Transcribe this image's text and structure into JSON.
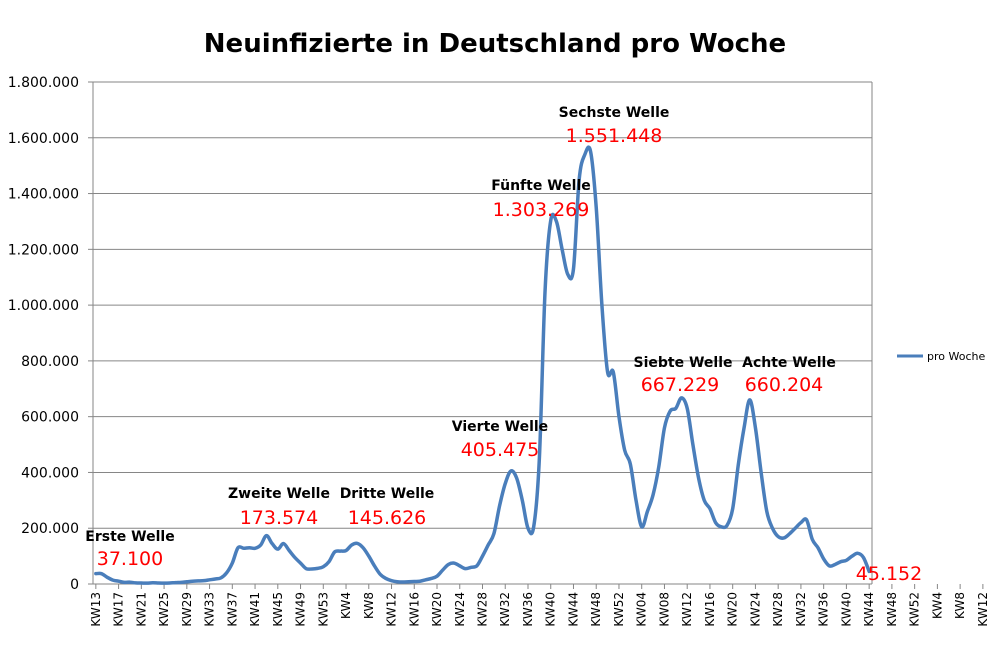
{
  "chart_data": {
    "type": "line",
    "title": "Neuinfizierte in Deutschland pro Woche",
    "xlabel": "",
    "ylabel": "",
    "ylim": [
      0,
      1800000
    ],
    "yticks": [
      "0",
      "200.000",
      "400.000",
      "600.000",
      "800.000",
      "1.000.000",
      "1.200.000",
      "1.400.000",
      "1.600.000",
      "1.800.000"
    ],
    "grid": true,
    "legend_position": "right",
    "colors": {
      "series": "#4a7ebb",
      "annotation_value": "#ff0000",
      "grid": "#868686"
    },
    "x_tick_labels": [
      "KW13",
      "KW17",
      "KW21",
      "KW25",
      "KW29",
      "KW33",
      "KW37",
      "KW41",
      "KW45",
      "KW49",
      "KW53",
      "KW4",
      "KW8",
      "KW12",
      "KW16",
      "KW20",
      "KW24",
      "KW28",
      "KW32",
      "KW36",
      "KW40",
      "KW44",
      "KW48",
      "KW52",
      "KW04",
      "KW08",
      "KW12",
      "KW16",
      "KW20",
      "KW24",
      "KW28",
      "KW32",
      "KW36",
      "KW40",
      "KW44",
      "KW48",
      "KW52",
      "KW4",
      "KW8",
      "KW12"
    ],
    "series": [
      {
        "name": "pro Woche",
        "values": [
          37100,
          37000,
          24000,
          14000,
          10000,
          6000,
          6500,
          4000,
          3500,
          3000,
          4500,
          3500,
          3000,
          3500,
          5000,
          6000,
          8000,
          10000,
          11000,
          12000,
          15000,
          18000,
          22000,
          40000,
          75000,
          130000,
          128000,
          130000,
          128000,
          140000,
          173574,
          145000,
          125000,
          145000,
          120000,
          95000,
          75000,
          55000,
          54000,
          56000,
          62000,
          80000,
          115000,
          118000,
          120000,
          140000,
          145626,
          130000,
          100000,
          65000,
          35000,
          20000,
          12000,
          8000,
          7000,
          8000,
          9000,
          10000,
          15000,
          20000,
          28000,
          50000,
          70000,
          75000,
          65000,
          55000,
          60000,
          65000,
          100000,
          140000,
          180000,
          280000,
          360000,
          405475,
          380000,
          300000,
          200000,
          205000,
          450000,
          1050000,
          1303269,
          1300000,
          1200000,
          1110000,
          1130000,
          1450000,
          1540000,
          1551448,
          1350000,
          1000000,
          760000,
          760000,
          600000,
          480000,
          430000,
          300000,
          205000,
          260000,
          320000,
          420000,
          560000,
          620000,
          630000,
          667229,
          630000,
          500000,
          380000,
          300000,
          270000,
          220000,
          205000,
          210000,
          270000,
          430000,
          560000,
          660204,
          560000,
          400000,
          260000,
          200000,
          170000,
          165000,
          180000,
          200000,
          220000,
          230000,
          160000,
          130000,
          90000,
          65000,
          70000,
          80000,
          85000,
          100000,
          110000,
          95000,
          45152
        ]
      }
    ],
    "annotations": [
      {
        "label": "Erste Welle",
        "value": "37.100"
      },
      {
        "label": "Zweite Welle",
        "value": "173.574"
      },
      {
        "label": "Dritte Welle",
        "value": "145.626"
      },
      {
        "label": "Vierte Welle",
        "value": "405.475"
      },
      {
        "label": "Fünfte Welle",
        "value": "1.303.269"
      },
      {
        "label": "Sechste Welle",
        "value": "1.551.448"
      },
      {
        "label": "Siebte Welle",
        "value": "667.229"
      },
      {
        "label": "Achte Welle",
        "value": "660.204"
      },
      {
        "label": "",
        "value": "45.152"
      }
    ]
  }
}
